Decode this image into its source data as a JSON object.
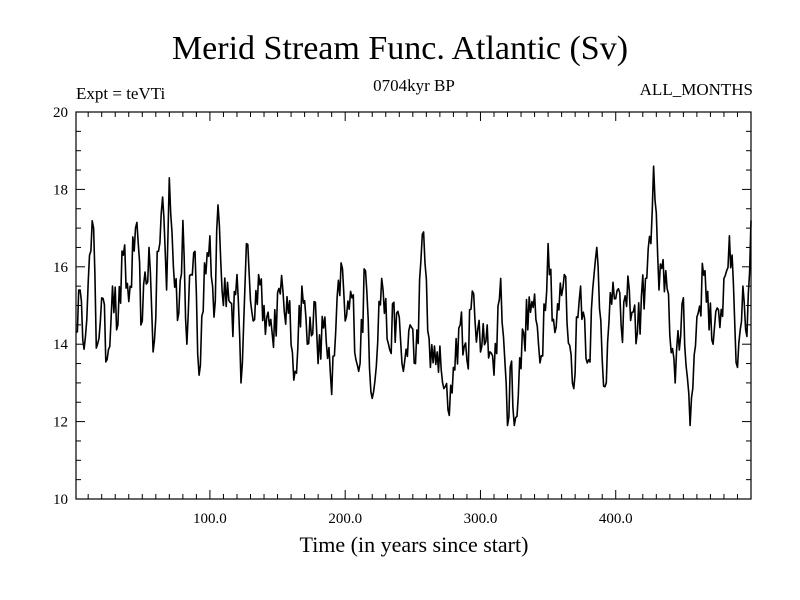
{
  "chart_data": {
    "type": "line",
    "title": "Merid Stream Func. Atlantic (Sv)",
    "subtitle_left": "Expt = teVTi",
    "subtitle_center": "0704kyr BP",
    "subtitle_right": "ALL_MONTHS",
    "xlabel": "Time (in years since start)",
    "ylabel": "",
    "xlim": [
      1,
      500
    ],
    "ylim": [
      10,
      20
    ],
    "x_ticks": [
      100,
      200,
      300,
      400
    ],
    "x_tick_labels": [
      "100.0",
      "200.0",
      "300.0",
      "400.0"
    ],
    "y_ticks": [
      10,
      12,
      14,
      16,
      18,
      20
    ],
    "y_tick_labels": [
      "10",
      "12",
      "14",
      "16",
      "18",
      "20"
    ],
    "grid": false,
    "line_color": "#000000",
    "series_anchors": {
      "x": [
        1,
        3,
        6,
        10,
        14,
        16,
        20,
        24,
        28,
        32,
        36,
        40,
        45,
        50,
        55,
        58,
        62,
        65,
        68,
        70,
        73,
        77,
        80,
        83,
        86,
        89,
        92,
        96,
        100,
        103,
        106,
        110,
        113,
        117,
        120,
        123,
        127,
        132,
        136,
        140,
        146,
        152,
        158,
        163,
        168,
        172,
        177,
        180,
        185,
        190,
        197,
        200,
        205,
        210,
        215,
        220,
        227,
        232,
        238,
        243,
        248,
        252,
        258,
        263,
        268,
        272,
        276,
        280,
        285,
        290,
        295,
        300,
        305,
        310,
        315,
        318,
        320,
        322,
        326,
        332,
        338,
        345,
        350,
        355,
        362,
        368,
        374,
        380,
        386,
        392,
        398,
        404,
        410,
        416,
        422,
        426,
        428,
        432,
        437,
        444,
        450,
        455,
        460,
        466,
        472,
        478,
        484,
        490,
        494,
        497,
        500
      ],
      "y": [
        14.3,
        15.4,
        14.1,
        15.6,
        17.0,
        13.9,
        15.2,
        13.6,
        15.5,
        14.5,
        16.3,
        15.1,
        17.0,
        14.6,
        16.5,
        13.8,
        16.4,
        17.8,
        15.4,
        18.3,
        16.0,
        14.8,
        17.2,
        14.0,
        15.8,
        16.4,
        13.2,
        16.1,
        16.8,
        14.7,
        17.6,
        15.0,
        15.6,
        14.2,
        15.8,
        13.0,
        16.6,
        14.6,
        15.8,
        15.0,
        14.3,
        15.3,
        14.8,
        13.3,
        15.5,
        14.0,
        15.1,
        13.5,
        14.7,
        12.7,
        16.1,
        14.6,
        15.2,
        13.3,
        15.9,
        12.6,
        15.7,
        14.0,
        14.8,
        13.3,
        14.5,
        13.5,
        16.9,
        13.4,
        13.8,
        13.0,
        12.3,
        13.4,
        14.5,
        13.6,
        15.3,
        13.8,
        14.5,
        13.2,
        15.7,
        13.6,
        11.9,
        13.4,
        12.1,
        14.3,
        15.1,
        13.7,
        16.6,
        14.3,
        15.8,
        13.0,
        15.5,
        13.6,
        16.5,
        12.9,
        15.6,
        14.5,
        15.4,
        14.3,
        15.7,
        16.6,
        18.6,
        15.4,
        15.9,
        13.0,
        15.2,
        11.9,
        14.7,
        15.9,
        14.0,
        14.9,
        16.8,
        13.4,
        15.5,
        14.2,
        17.2
      ]
    }
  }
}
